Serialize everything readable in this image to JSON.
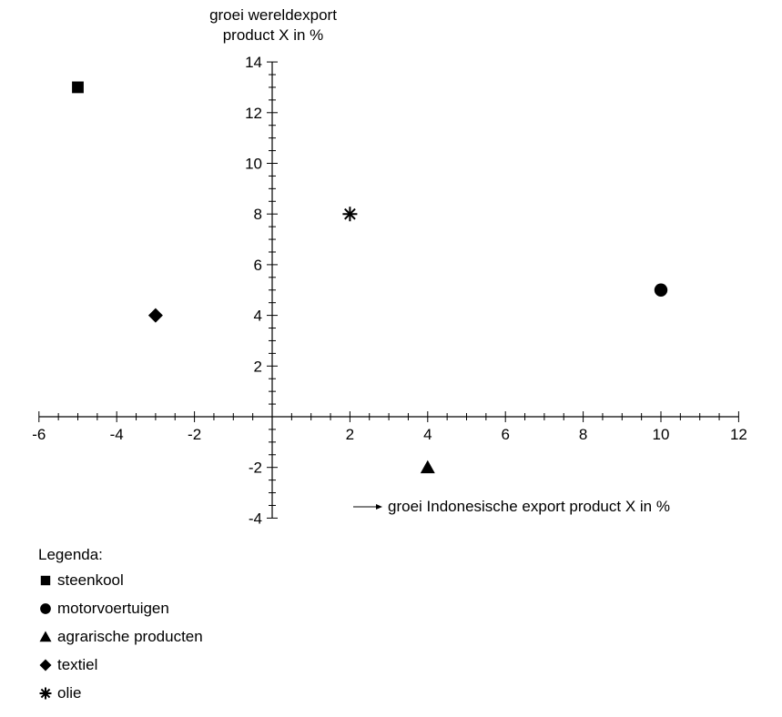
{
  "chart_data": {
    "type": "scatter",
    "ylabel_line1": "groei wereldexport",
    "ylabel_line2": "product X in %",
    "xlabel": "groei Indonesische export product X in %",
    "xlim": [
      -6,
      12
    ],
    "ylim": [
      -4,
      14
    ],
    "x_ticks": [
      -6,
      -4,
      -2,
      2,
      4,
      6,
      8,
      10,
      12
    ],
    "y_ticks": [
      14,
      12,
      10,
      8,
      6,
      4,
      2,
      -2,
      -4
    ],
    "grid": false,
    "legend_title": "Legenda:",
    "series": [
      {
        "name": "steenkool",
        "marker": "square",
        "x": -5,
        "y": 13
      },
      {
        "name": "motorvoertuigen",
        "marker": "circle",
        "x": 10,
        "y": 5
      },
      {
        "name": "agrarische producten",
        "marker": "triangle",
        "x": 4,
        "y": -2
      },
      {
        "name": "textiel",
        "marker": "diamond",
        "x": -3,
        "y": 4
      },
      {
        "name": "olie",
        "marker": "asterisk",
        "x": 2,
        "y": 8
      }
    ]
  }
}
